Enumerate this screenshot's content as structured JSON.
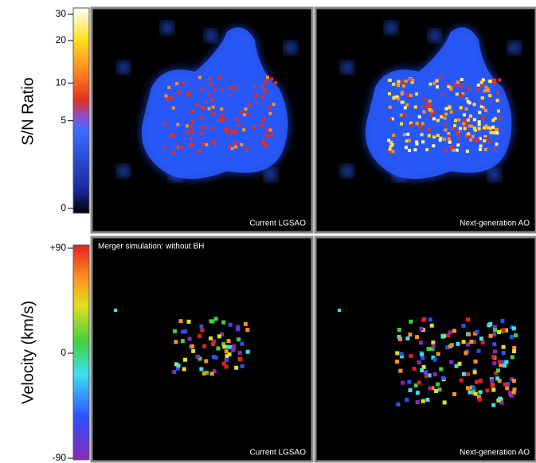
{
  "colorbars": [
    {
      "label": "S/N Ratio",
      "ticks": [
        0,
        5,
        10,
        20,
        30
      ]
    },
    {
      "label": "Velocity (km/s)",
      "ticks": [
        -90,
        0,
        {
          "value": 90,
          "label": "+90"
        }
      ]
    }
  ],
  "panels": [
    {
      "label": "Current LGSAO"
    },
    {
      "label": "Next-generation AO"
    },
    {
      "label": "Current LGSAO"
    },
    {
      "label": "Next-generation AO"
    }
  ],
  "bottom_row_title": "Merger simulation: without BH"
}
